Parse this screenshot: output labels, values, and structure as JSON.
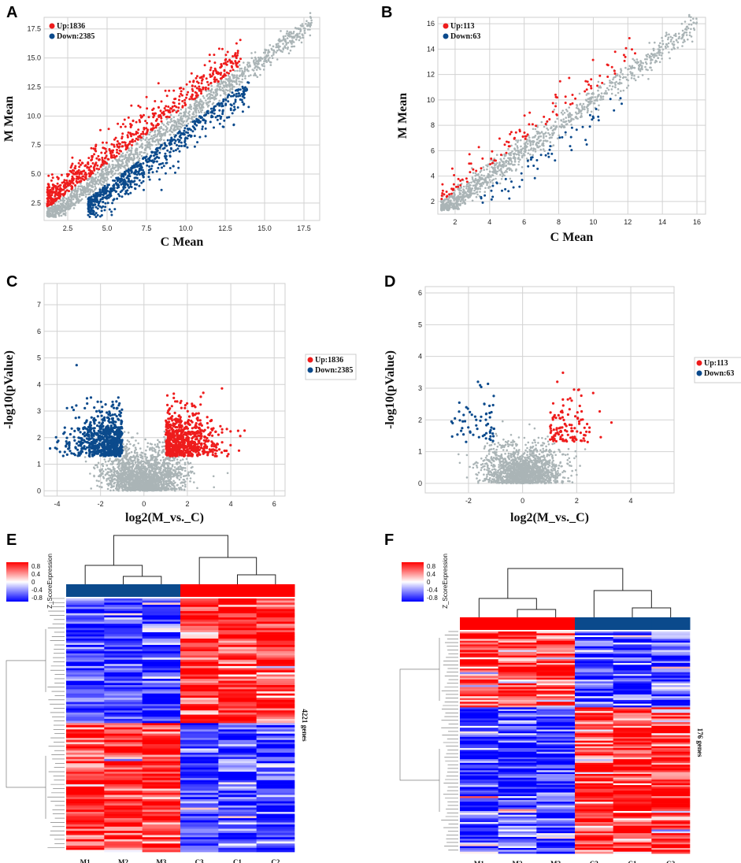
{
  "colors": {
    "up": "#ee1c1c",
    "down": "#0b4a8c",
    "ns": "#aab4b6",
    "grid": "#d2d2d2",
    "heat_hi": "#ff0000",
    "heat_lo": "#0000ff",
    "heat_mid": "#ffffff"
  },
  "chart_data": [
    {
      "panel": "A",
      "type": "scatter",
      "title": "",
      "xlabel": "C Mean",
      "ylabel": "M Mean",
      "xlim": [
        1,
        18.5
      ],
      "ylim": [
        1,
        18.5
      ],
      "xticks": [
        2.5,
        5.0,
        7.5,
        10.0,
        12.5,
        15.0,
        17.5
      ],
      "yticks": [
        2.5,
        5.0,
        7.5,
        10.0,
        12.5,
        15.0,
        17.5
      ],
      "xtick_labels": [
        "2.5",
        "5.0",
        "7.5",
        "10.0",
        "12.5",
        "15.0",
        "17.5"
      ],
      "ytick_labels": [
        "2.5",
        "5.0",
        "7.5",
        "10.0",
        "12.5",
        "15.0",
        "17.5"
      ],
      "legend": {
        "position": "top-left",
        "entries": [
          {
            "label": "Up:1836",
            "color": "#ee1c1c"
          },
          {
            "label": "Down:2385",
            "color": "#0b4a8c"
          }
        ]
      },
      "series": [
        {
          "name": "Up",
          "count": 1836
        },
        {
          "name": "Down",
          "count": 2385
        },
        {
          "name": "Not significant"
        }
      ]
    },
    {
      "panel": "B",
      "type": "scatter",
      "title": "",
      "xlabel": "C Mean",
      "ylabel": "M Mean",
      "xlim": [
        1,
        16.5
      ],
      "ylim": [
        1,
        16.5
      ],
      "xticks": [
        2,
        4,
        6,
        8,
        10,
        12,
        14,
        16
      ],
      "yticks": [
        2,
        4,
        6,
        8,
        10,
        12,
        14,
        16
      ],
      "xtick_labels": [
        "2",
        "4",
        "6",
        "8",
        "10",
        "12",
        "14",
        "16"
      ],
      "ytick_labels": [
        "2",
        "4",
        "6",
        "8",
        "10",
        "12",
        "14",
        "16"
      ],
      "legend": {
        "position": "top-left",
        "entries": [
          {
            "label": "Up:113",
            "color": "#ee1c1c"
          },
          {
            "label": "Down:63",
            "color": "#0b4a8c"
          }
        ]
      },
      "series": [
        {
          "name": "Up",
          "count": 113
        },
        {
          "name": "Down",
          "count": 63
        },
        {
          "name": "Not significant"
        }
      ]
    },
    {
      "panel": "C",
      "type": "scatter",
      "title": "",
      "xlabel": "log2(M_vs._C)",
      "ylabel": "-log10(pValue)",
      "xlim": [
        -4.6,
        6.5
      ],
      "ylim": [
        -0.2,
        7.8
      ],
      "xticks": [
        -4,
        -2,
        0,
        2,
        4,
        6
      ],
      "yticks": [
        0,
        1,
        2,
        3,
        4,
        5,
        6,
        7
      ],
      "xtick_labels": [
        "-4",
        "-2",
        "0",
        "2",
        "4",
        "6"
      ],
      "ytick_labels": [
        "0",
        "1",
        "2",
        "3",
        "4",
        "5",
        "6",
        "7"
      ],
      "legend": {
        "position": "right-outside",
        "entries": [
          {
            "label": "Up:1836",
            "color": "#ee1c1c"
          },
          {
            "label": "Down:2385",
            "color": "#0b4a8c"
          }
        ]
      },
      "thresholds": {
        "log2fc": 1,
        "pvalue_log10": 1.3
      },
      "series": [
        {
          "name": "Up",
          "count": 1836
        },
        {
          "name": "Down",
          "count": 2385
        },
        {
          "name": "Not significant"
        }
      ]
    },
    {
      "panel": "D",
      "type": "scatter",
      "title": "",
      "xlabel": "log2(M_vs._C)",
      "ylabel": "-log10(pValue)",
      "xlim": [
        -3.6,
        5.6
      ],
      "ylim": [
        -0.3,
        6.2
      ],
      "xticks": [
        -2,
        0,
        2,
        4
      ],
      "yticks": [
        0,
        1,
        2,
        3,
        4,
        5,
        6
      ],
      "xtick_labels": [
        "-2",
        "0",
        "2",
        "4"
      ],
      "ytick_labels": [
        "0",
        "1",
        "2",
        "3",
        "4",
        "5",
        "6"
      ],
      "legend": {
        "position": "right-outside",
        "entries": [
          {
            "label": "Up:113",
            "color": "#ee1c1c"
          },
          {
            "label": "Down:63",
            "color": "#0b4a8c"
          }
        ]
      },
      "thresholds": {
        "log2fc": 1,
        "pvalue_log10": 1.3
      },
      "series": [
        {
          "name": "Up",
          "count": 113
        },
        {
          "name": "Down",
          "count": 63
        },
        {
          "name": "Not significant"
        }
      ]
    },
    {
      "panel": "E",
      "type": "heatmap",
      "columns": [
        "M1",
        "M2",
        "M3",
        "C3",
        "C1",
        "C2"
      ],
      "group_bar": [
        "down",
        "down",
        "down",
        "up",
        "up",
        "up"
      ],
      "genes_label": "4221 genes",
      "colorbar": {
        "title": "Z_ScoreExpression",
        "ticks": [
          "0.8",
          "0.4",
          "0",
          "-0.4",
          "-0.8"
        ]
      }
    },
    {
      "panel": "F",
      "type": "heatmap",
      "columns": [
        "M1",
        "M2",
        "M3",
        "C3",
        "C1",
        "C2"
      ],
      "group_bar": [
        "up",
        "up",
        "up",
        "down",
        "down",
        "down"
      ],
      "genes_label": "176 genes",
      "colorbar": {
        "title": "Z_ScoreExpression",
        "ticks": [
          "0.8",
          "0.4",
          "0",
          "-0.4",
          "-0.8"
        ]
      }
    }
  ]
}
